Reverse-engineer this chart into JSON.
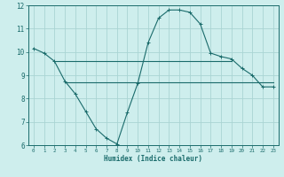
{
  "bg_color": "#ceeeed",
  "grid_color": "#aad4d3",
  "line_color": "#1a6b6b",
  "xlabel": "Humidex (Indice chaleur)",
  "xlim": [
    -0.5,
    23.5
  ],
  "ylim": [
    6,
    12
  ],
  "xticks": [
    0,
    1,
    2,
    3,
    4,
    5,
    6,
    7,
    8,
    9,
    10,
    11,
    12,
    13,
    14,
    15,
    16,
    17,
    18,
    19,
    20,
    21,
    22,
    23
  ],
  "yticks": [
    6,
    7,
    8,
    9,
    10,
    11,
    12
  ],
  "curve1_x": [
    0,
    1,
    2,
    3,
    4,
    5,
    6,
    7,
    8,
    9,
    10,
    11,
    12,
    13,
    14,
    15,
    16,
    17,
    18,
    19,
    20,
    21,
    22,
    23
  ],
  "curve1_y": [
    10.15,
    9.95,
    9.6,
    8.75,
    8.2,
    7.45,
    6.7,
    6.3,
    6.05,
    7.4,
    8.65,
    10.4,
    11.45,
    11.8,
    11.8,
    11.7,
    11.2,
    9.95,
    9.8,
    9.7,
    9.3,
    9.0,
    8.5,
    8.5
  ],
  "curve2_x": [
    2,
    3,
    4,
    5,
    6,
    7,
    8,
    9,
    10,
    11,
    12,
    13,
    14,
    15,
    16,
    17,
    18,
    19
  ],
  "curve2_y": [
    9.6,
    9.6,
    9.6,
    9.6,
    9.6,
    9.6,
    9.6,
    9.6,
    9.6,
    9.6,
    9.6,
    9.6,
    9.6,
    9.6,
    9.6,
    9.6,
    9.6,
    9.6
  ],
  "curve3_x": [
    3,
    4,
    5,
    6,
    7,
    8,
    9,
    10,
    11,
    12,
    13,
    14,
    15,
    16,
    17,
    18,
    19,
    20,
    21,
    22,
    23
  ],
  "curve3_y": [
    8.7,
    8.7,
    8.7,
    8.7,
    8.7,
    8.7,
    8.7,
    8.7,
    8.7,
    8.7,
    8.7,
    8.7,
    8.7,
    8.7,
    8.7,
    8.7,
    8.7,
    8.7,
    8.7,
    8.7,
    8.7
  ],
  "figsize": [
    3.2,
    2.0
  ],
  "dpi": 100
}
